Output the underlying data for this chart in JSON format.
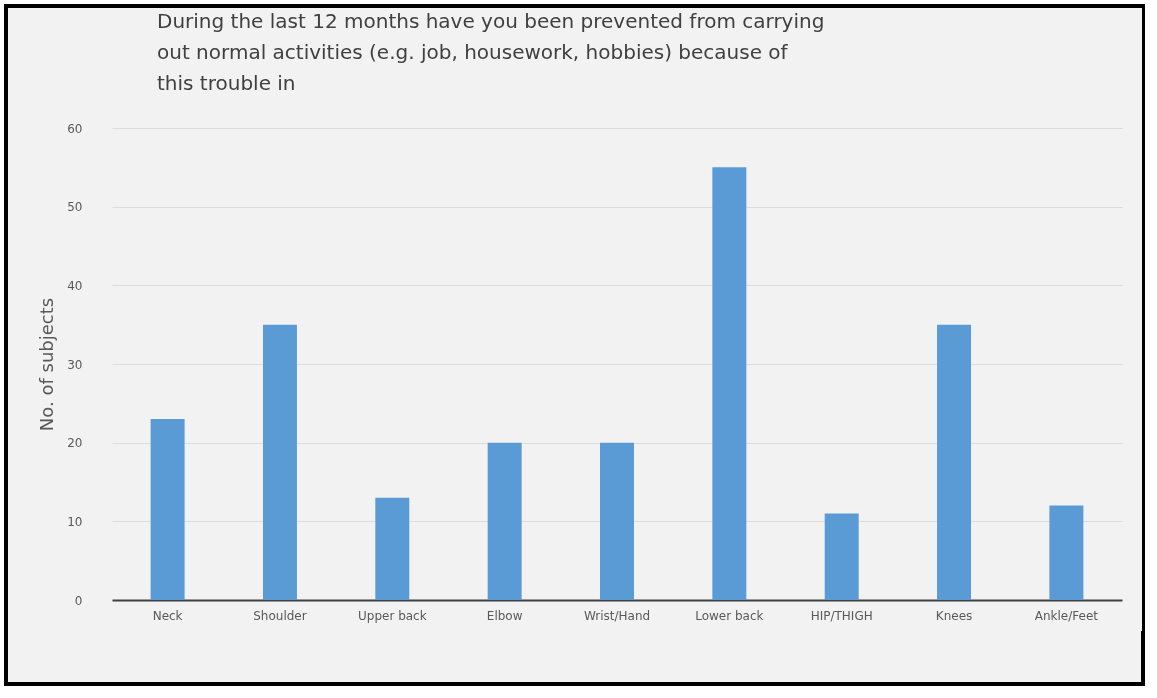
{
  "chart_data": {
    "type": "bar",
    "title": "During the last 12 months have you been prevented from carrying out normal activities (e.g. job, housework, hobbies) because of this trouble in",
    "ylabel": "No. of subjects",
    "categories": [
      "Neck",
      "Shoulder",
      "Upper back",
      "Elbow",
      "Wrist/Hand",
      "Lower back",
      "HIP/THIGH",
      "Knees",
      "Ankle/Feet"
    ],
    "values": [
      23,
      35,
      13,
      20,
      20,
      55,
      11,
      35,
      12
    ],
    "color": "#5b9bd5",
    "ylim": [
      0,
      60
    ],
    "yticks": [
      0,
      10,
      20,
      30,
      40,
      50,
      60
    ],
    "grid": "y"
  }
}
